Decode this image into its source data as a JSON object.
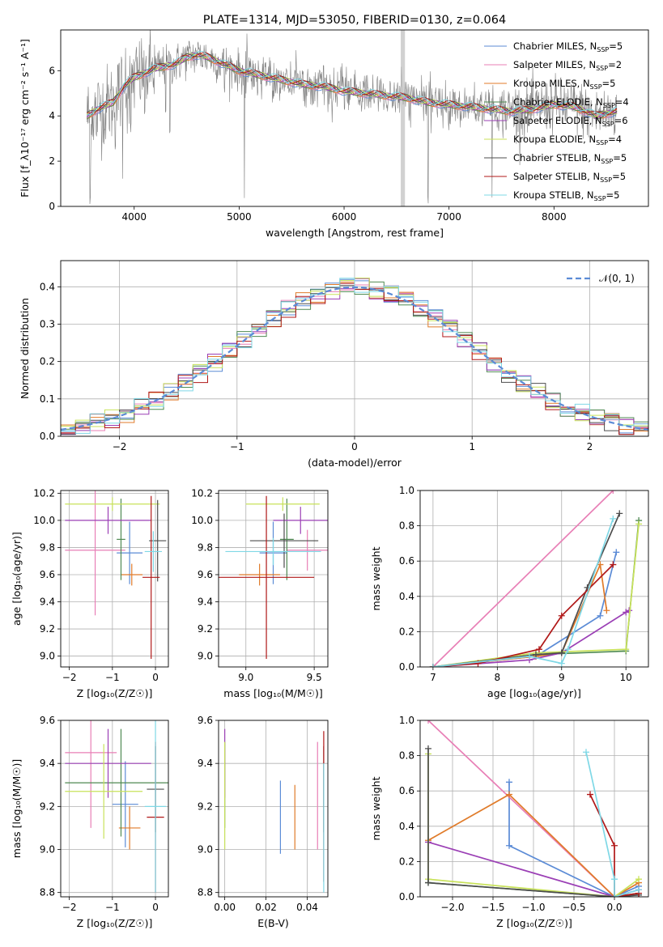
{
  "colors": {
    "chabrier_miles": "#5b8bd6",
    "salpeter_miles": "#e87fb6",
    "kroupa_miles": "#e07b2a",
    "chabrier_elodie": "#4f8a52",
    "salpeter_elodie": "#9b3fb5",
    "kroupa_elodie": "#c8e25a",
    "chabrier_stelib": "#4d4d4d",
    "salpeter_stelib": "#b01818",
    "kroupa_stelib": "#7fd8e6",
    "model": "#5b8bd6",
    "data": "#808080",
    "gaussian": "#5b8bd6"
  },
  "chart_data": [
    {
      "id": "spectrum",
      "type": "line",
      "title": "PLATE=1314, MJD=53050, FIBERID=0130, z=0.064",
      "xlabel": "wavelength [Angstrom, rest frame]",
      "ylabel": "Flux [f_λ10⁻¹⁷ erg cm⁻² s⁻¹ A⁻¹]",
      "xlim": [
        3300,
        8900
      ],
      "ylim": [
        0,
        7.8
      ],
      "xticks": [
        "4000",
        "5000",
        "6000",
        "7000",
        "8000"
      ],
      "yticks": [
        "0",
        "2",
        "4",
        "6"
      ],
      "legend_placement": "upper-right",
      "legend": [
        {
          "key": "chabrier_miles",
          "label": "Chabrier MILES, N",
          "sub": "SSP",
          "eq": "=5"
        },
        {
          "key": "salpeter_miles",
          "label": "Salpeter MILES, N",
          "sub": "SSP",
          "eq": "=2"
        },
        {
          "key": "kroupa_miles",
          "label": "Kroupa MILES, N",
          "sub": "SSP",
          "eq": "=5"
        },
        {
          "key": "chabrier_elodie",
          "label": "Chabrier ELODIE, N",
          "sub": "SSP",
          "eq": "=4"
        },
        {
          "key": "salpeter_elodie",
          "label": "Salpeter ELODIE, N",
          "sub": "SSP",
          "eq": "=6"
        },
        {
          "key": "kroupa_elodie",
          "label": "Kroupa ELODIE, N",
          "sub": "SSP",
          "eq": "=4"
        },
        {
          "key": "chabrier_stelib",
          "label": "Chabrier STELIB, N",
          "sub": "SSP",
          "eq": "=5"
        },
        {
          "key": "salpeter_stelib",
          "label": "Salpeter STELIB, N",
          "sub": "SSP",
          "eq": "=5"
        },
        {
          "key": "kroupa_stelib",
          "label": "Kroupa STELIB, N",
          "sub": "SSP",
          "eq": "=5"
        }
      ],
      "continuum": [
        [
          3550,
          4.0
        ],
        [
          3650,
          4.3
        ],
        [
          3800,
          4.6
        ],
        [
          3900,
          5.3
        ],
        [
          4000,
          5.7
        ],
        [
          4100,
          5.9
        ],
        [
          4200,
          6.1
        ],
        [
          4300,
          6.2
        ],
        [
          4400,
          6.3
        ],
        [
          4500,
          6.6
        ],
        [
          4600,
          6.7
        ],
        [
          4700,
          6.6
        ],
        [
          4800,
          6.4
        ],
        [
          4900,
          6.2
        ],
        [
          5000,
          6.0
        ],
        [
          5200,
          5.8
        ],
        [
          5400,
          5.6
        ],
        [
          5600,
          5.4
        ],
        [
          5800,
          5.3
        ],
        [
          6000,
          5.1
        ],
        [
          6200,
          5.0
        ],
        [
          6400,
          4.9
        ],
        [
          6600,
          4.8
        ],
        [
          6800,
          4.6
        ],
        [
          7000,
          4.5
        ],
        [
          7200,
          4.4
        ],
        [
          7400,
          4.3
        ],
        [
          7600,
          4.2
        ],
        [
          7800,
          4.3
        ],
        [
          8000,
          4.5
        ],
        [
          8200,
          4.4
        ],
        [
          8400,
          4.0
        ],
        [
          8600,
          4.2
        ]
      ],
      "absorption": [
        [
          3580,
          0
        ],
        [
          3640,
          2.9
        ],
        [
          3720,
          3.0
        ],
        [
          3820,
          2.4
        ],
        [
          3890,
          1.1
        ],
        [
          3934,
          3.0
        ],
        [
          3968,
          3.2
        ],
        [
          4100,
          3.7
        ],
        [
          4300,
          4.0
        ],
        [
          4340,
          3.0
        ],
        [
          4861,
          4.9
        ],
        [
          5050,
          0
        ],
        [
          5175,
          4.8
        ],
        [
          5893,
          4.6
        ],
        [
          6800,
          0
        ],
        [
          7410,
          0
        ]
      ]
    },
    {
      "id": "residuals",
      "type": "line",
      "xlabel": "(data-model)/error",
      "ylabel": "Normed distribution",
      "xlim": [
        -2.5,
        2.5
      ],
      "ylim": [
        0,
        0.47
      ],
      "xticks": [
        "−2",
        "−1",
        "0",
        "1",
        "2"
      ],
      "yticks": [
        "0.0",
        "0.1",
        "0.2",
        "0.3",
        "0.4"
      ],
      "legend_placement": "upper-right",
      "legend_label": "𝒩(0, 1)",
      "gaussian": {
        "mean": 0,
        "sigma": 1
      },
      "bins": 40
    },
    {
      "id": "age_vs_z",
      "type": "scatter",
      "xlabel": "Z [log₁₀(Z/Z☉)]",
      "ylabel": "age  [log₁₀(age/yr)]",
      "xlim": [
        -2.2,
        0.3
      ],
      "ylim": [
        8.92,
        10.22
      ],
      "xticks": [
        "−2",
        "−1",
        "0"
      ],
      "yticks": [
        "9.0",
        "9.2",
        "9.4",
        "9.6",
        "9.8",
        "10.0",
        "10.2"
      ],
      "points": [
        {
          "key": "chabrier_miles",
          "x": -0.6,
          "y": 9.76,
          "xerr": 0.3,
          "yerr": 0.23
        },
        {
          "key": "salpeter_miles",
          "x": -1.4,
          "y": 9.78,
          "xerr": 0.7,
          "yerr": 0.48
        },
        {
          "key": "kroupa_miles",
          "x": -0.55,
          "y": 9.6,
          "xerr": 0.25,
          "yerr": 0.08
        },
        {
          "key": "chabrier_elodie",
          "x": -0.8,
          "y": 9.86,
          "xerr": 0.1,
          "yerr": 0.3
        },
        {
          "key": "salpeter_elodie",
          "x": -1.1,
          "y": 10.0,
          "xerr": 1.0,
          "yerr": 0.1
        },
        {
          "key": "kroupa_elodie",
          "x": -1.0,
          "y": 10.12,
          "xerr": 1.1,
          "yerr": 0.05
        },
        {
          "key": "chabrier_stelib",
          "x": 0.05,
          "y": 9.85,
          "xerr": 0.2,
          "yerr": 0.3
        },
        {
          "key": "salpeter_stelib",
          "x": -0.1,
          "y": 9.58,
          "xerr": 0.2,
          "yerr": 0.6
        },
        {
          "key": "kroupa_stelib",
          "x": -0.05,
          "y": 9.77,
          "xerr": 0.2,
          "yerr": 0.15
        }
      ]
    },
    {
      "id": "age_vs_mass",
      "type": "scatter",
      "xlabel": "mass [log₁₀(M/M☉)]",
      "ylabel": "",
      "xlim": [
        8.8,
        9.6
      ],
      "ylim": [
        8.92,
        10.22
      ],
      "xticks": [
        "9.0",
        "9.5"
      ],
      "yticks": [
        "9.0",
        "9.2",
        "9.4",
        "9.6",
        "9.8",
        "10.0",
        "10.2"
      ],
      "points": [
        {
          "key": "chabrier_miles",
          "x": 9.2,
          "y": 9.76,
          "xerr": 0.1,
          "yerr": 0.23
        },
        {
          "key": "salpeter_miles",
          "x": 9.45,
          "y": 9.78,
          "xerr": 0.15,
          "yerr": 0.15
        },
        {
          "key": "kroupa_miles",
          "x": 9.1,
          "y": 9.6,
          "xerr": 0.15,
          "yerr": 0.08
        },
        {
          "key": "chabrier_elodie",
          "x": 9.3,
          "y": 9.86,
          "xerr": 0.05,
          "yerr": 0.3
        },
        {
          "key": "salpeter_elodie",
          "x": 9.4,
          "y": 10.0,
          "xerr": 0.2,
          "yerr": 0.1
        },
        {
          "key": "kroupa_elodie",
          "x": 9.27,
          "y": 10.12,
          "xerr": 0.27,
          "yerr": 0.05
        },
        {
          "key": "chabrier_stelib",
          "x": 9.28,
          "y": 9.85,
          "xerr": 0.25,
          "yerr": 0.2
        },
        {
          "key": "salpeter_stelib",
          "x": 9.15,
          "y": 9.58,
          "xerr": 0.35,
          "yerr": 0.6
        },
        {
          "key": "kroupa_stelib",
          "x": 9.2,
          "y": 9.77,
          "xerr": 0.35,
          "yerr": 0.1
        }
      ]
    },
    {
      "id": "weight_vs_age",
      "type": "line",
      "xlabel": "age  [log₁₀(age/yr)]",
      "ylabel": "mass weight",
      "xlim": [
        6.8,
        10.35
      ],
      "ylim": [
        0,
        1.0
      ],
      "xticks": [
        "7",
        "8",
        "9",
        "10"
      ],
      "yticks": [
        "0.0",
        "0.2",
        "0.4",
        "0.6",
        "0.8",
        "1.0"
      ],
      "series": [
        {
          "key": "chabrier_miles",
          "points": [
            [
              7.0,
              0.0
            ],
            [
              8.6,
              0.06
            ],
            [
              9.6,
              0.29
            ],
            [
              9.85,
              0.65
            ]
          ]
        },
        {
          "key": "salpeter_miles",
          "points": [
            [
              7.0,
              0.0
            ],
            [
              9.8,
              1.0
            ]
          ]
        },
        {
          "key": "kroupa_miles",
          "points": [
            [
              7.0,
              0.0
            ],
            [
              8.6,
              0.06
            ],
            [
              9.0,
              0.08
            ],
            [
              9.6,
              0.58
            ],
            [
              9.7,
              0.32
            ]
          ]
        },
        {
          "key": "chabrier_elodie",
          "points": [
            [
              7.0,
              0.0
            ],
            [
              8.6,
              0.07
            ],
            [
              10.0,
              0.09
            ],
            [
              10.2,
              0.83
            ]
          ]
        },
        {
          "key": "salpeter_elodie",
          "points": [
            [
              7.0,
              0.0
            ],
            [
              8.5,
              0.04
            ],
            [
              9.0,
              0.08
            ],
            [
              10.0,
              0.31
            ],
            [
              10.05,
              0.32
            ]
          ]
        },
        {
          "key": "kroupa_elodie",
          "points": [
            [
              7.0,
              0.0
            ],
            [
              8.6,
              0.08
            ],
            [
              10.0,
              0.1
            ],
            [
              10.2,
              0.81
            ]
          ]
        },
        {
          "key": "chabrier_stelib",
          "points": [
            [
              7.0,
              0.0
            ],
            [
              8.6,
              0.07
            ],
            [
              9.0,
              0.08
            ],
            [
              9.4,
              0.45
            ],
            [
              9.9,
              0.87
            ]
          ]
        },
        {
          "key": "salpeter_stelib",
          "points": [
            [
              7.0,
              0.0
            ],
            [
              7.7,
              0.02
            ],
            [
              8.65,
              0.1
            ],
            [
              9.0,
              0.29
            ],
            [
              9.8,
              0.58
            ]
          ]
        },
        {
          "key": "kroupa_stelib",
          "points": [
            [
              7.0,
              0.0
            ],
            [
              8.5,
              0.06
            ],
            [
              9.0,
              0.02
            ],
            [
              9.1,
              0.1
            ],
            [
              9.8,
              0.84
            ]
          ]
        }
      ]
    },
    {
      "id": "mass_vs_z",
      "type": "scatter",
      "xlabel": "Z [log₁₀(Z/Z☉)]",
      "ylabel": "mass [log₁₀(M/M☉)]",
      "xlim": [
        -2.2,
        0.3
      ],
      "ylim": [
        8.78,
        9.6
      ],
      "xticks": [
        "−2",
        "−1",
        "0"
      ],
      "yticks": [
        "8.8",
        "9.0",
        "9.2",
        "9.4",
        "9.6"
      ],
      "points": [
        {
          "key": "chabrier_miles",
          "x": -0.7,
          "y": 9.21,
          "xerr": 0.3,
          "yerr": 0.2
        },
        {
          "key": "salpeter_miles",
          "x": -1.5,
          "y": 9.45,
          "xerr": 0.6,
          "yerr": 0.35
        },
        {
          "key": "kroupa_miles",
          "x": -0.6,
          "y": 9.1,
          "xerr": 0.25,
          "yerr": 0.1
        },
        {
          "key": "chabrier_elodie",
          "x": -0.8,
          "y": 9.31,
          "xerr": 1.3,
          "yerr": 0.25
        },
        {
          "key": "salpeter_elodie",
          "x": -1.1,
          "y": 9.4,
          "xerr": 1.0,
          "yerr": 0.16
        },
        {
          "key": "kroupa_elodie",
          "x": -1.2,
          "y": 9.27,
          "xerr": 0.9,
          "yerr": 0.22
        },
        {
          "key": "chabrier_stelib",
          "x": 0.0,
          "y": 9.28,
          "xerr": 0.2,
          "yerr": 0.2
        },
        {
          "key": "salpeter_stelib",
          "x": 0.0,
          "y": 9.15,
          "xerr": 0.2,
          "yerr": 0.35
        },
        {
          "key": "kroupa_stelib",
          "x": 0.0,
          "y": 9.2,
          "xerr": 0.25,
          "yerr": 0.4
        }
      ]
    },
    {
      "id": "mass_vs_ebv",
      "type": "scatter",
      "xlabel": "E(B-V)",
      "ylabel": "",
      "xlim": [
        -0.003,
        0.05
      ],
      "ylim": [
        8.78,
        9.6
      ],
      "xticks": [
        "0.00",
        "0.02",
        "0.04"
      ],
      "yticks": [
        "8.8",
        "9.0",
        "9.2",
        "9.4",
        "9.6"
      ],
      "points": [
        {
          "key": "chabrier_miles",
          "x": 0.027,
          "y": 9.15,
          "xerr": 0,
          "yerr": 0.17
        },
        {
          "key": "salpeter_miles",
          "x": 0.045,
          "y": 9.25,
          "xerr": 0,
          "yerr": 0.25
        },
        {
          "key": "kroupa_miles",
          "x": 0.034,
          "y": 9.15,
          "xerr": 0,
          "yerr": 0.15
        },
        {
          "key": "chabrier_elodie",
          "x": 0.0,
          "y": 9.3,
          "xerr": 0,
          "yerr": 0.2
        },
        {
          "key": "salpeter_elodie",
          "x": 0.0,
          "y": 9.4,
          "xerr": 0,
          "yerr": 0.16
        },
        {
          "key": "kroupa_elodie",
          "x": 0.0,
          "y": 9.25,
          "xerr": 0,
          "yerr": 0.25
        },
        {
          "key": "chabrier_stelib",
          "x": 0.048,
          "y": 9.28,
          "xerr": 0,
          "yerr": 0.2
        },
        {
          "key": "salpeter_stelib",
          "x": 0.048,
          "y": 9.2,
          "xerr": 0,
          "yerr": 0.35
        },
        {
          "key": "kroupa_stelib",
          "x": 0.048,
          "y": 9.1,
          "xerr": 0,
          "yerr": 0.3
        }
      ]
    },
    {
      "id": "weight_vs_z",
      "type": "line",
      "xlabel": "Z [log₁₀(Z/Z☉)]",
      "ylabel": "mass weight",
      "xlim": [
        -2.4,
        0.42
      ],
      "ylim": [
        0,
        1.0
      ],
      "xticks": [
        "−2.0",
        "−1.5",
        "−1.0",
        "−0.5",
        "0.0"
      ],
      "yticks": [
        "0.0",
        "0.2",
        "0.4",
        "0.6",
        "0.8",
        "1.0"
      ],
      "series": [
        {
          "key": "chabrier_miles",
          "points": [
            [
              -1.3,
              0.65
            ],
            [
              -1.3,
              0.29
            ],
            [
              0.0,
              0.0
            ],
            [
              0.3,
              0.06
            ]
          ]
        },
        {
          "key": "salpeter_miles",
          "points": [
            [
              -2.3,
              1.0
            ],
            [
              0.0,
              0.0
            ]
          ]
        },
        {
          "key": "kroupa_miles",
          "points": [
            [
              -2.3,
              0.32
            ],
            [
              -1.3,
              0.58
            ],
            [
              0.0,
              0.0
            ],
            [
              0.3,
              0.08
            ]
          ]
        },
        {
          "key": "chabrier_elodie",
          "points": [
            [
              -2.3,
              0.08
            ],
            [
              0.0,
              0.0
            ],
            [
              0.3,
              0.02
            ]
          ]
        },
        {
          "key": "salpeter_elodie",
          "points": [
            [
              -2.3,
              0.31
            ],
            [
              0.0,
              0.0
            ],
            [
              0.3,
              0.04
            ]
          ]
        },
        {
          "key": "kroupa_elodie",
          "points": [
            [
              -2.3,
              0.81
            ],
            [
              -2.3,
              0.1
            ],
            [
              0.0,
              0.0
            ],
            [
              0.3,
              0.1
            ]
          ]
        },
        {
          "key": "chabrier_stelib",
          "points": [
            [
              -2.3,
              0.84
            ],
            [
              -2.3,
              0.08
            ],
            [
              0.0,
              0.0
            ],
            [
              0.3,
              0.01
            ]
          ]
        },
        {
          "key": "salpeter_stelib",
          "points": [
            [
              -0.3,
              0.58
            ],
            [
              0.0,
              0.29
            ],
            [
              0.0,
              0.0
            ],
            [
              0.3,
              0.02
            ]
          ]
        },
        {
          "key": "kroupa_stelib",
          "points": [
            [
              -0.35,
              0.82
            ],
            [
              0.0,
              0.1
            ],
            [
              0.0,
              0.0
            ],
            [
              0.3,
              0.04
            ]
          ]
        }
      ]
    }
  ]
}
